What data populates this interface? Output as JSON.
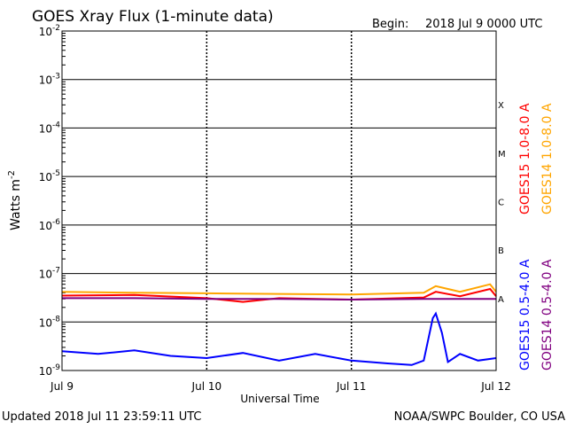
{
  "header": {
    "title": "GOES Xray Flux (1-minute data)",
    "begin_label": "Begin:",
    "begin_value": "2018 Jul 9 0000 UTC"
  },
  "footer": {
    "updated": "Updated 2018 Jul 11 23:59:11 UTC",
    "credit": "NOAA/SWPC Boulder, CO USA"
  },
  "chart_data": {
    "type": "line",
    "title": "GOES Xray Flux (1-minute data)",
    "xlabel": "Universal Time",
    "ylabel": "Watts m",
    "ylabel_superscript": "-2",
    "yscale": "log",
    "ylim": [
      1e-09,
      0.01
    ],
    "y_ticks": [
      {
        "base": "10",
        "exp": "-9"
      },
      {
        "base": "10",
        "exp": "-8"
      },
      {
        "base": "10",
        "exp": "-7"
      },
      {
        "base": "10",
        "exp": "-6"
      },
      {
        "base": "10",
        "exp": "-5"
      },
      {
        "base": "10",
        "exp": "-4"
      },
      {
        "base": "10",
        "exp": "-3"
      },
      {
        "base": "10",
        "exp": "-2"
      }
    ],
    "x_ticks": [
      "Jul 9",
      "Jul 10",
      "Jul 11",
      "Jul 12"
    ],
    "xlim": [
      "2018-07-09 00:00",
      "2018-07-12 00:00"
    ],
    "flare_classes": [
      "A",
      "B",
      "C",
      "M",
      "X"
    ],
    "grid": true,
    "legend_right": {
      "goes15_long": "GOES15 1.0-8.0 A",
      "goes14_long": "GOES14 1.0-8.0 A",
      "goes15_short": "GOES15 0.5-4.0 A",
      "goes14_short": "GOES14 0.5-4.0 A"
    },
    "series": [
      {
        "name": "GOES14 1.0-8.0 A",
        "color": "#ffa500",
        "x": [
          "2018-07-09 00:00",
          "2018-07-09 12:00",
          "2018-07-10 00:00",
          "2018-07-10 12:00",
          "2018-07-11 00:00",
          "2018-07-11 12:00",
          "2018-07-11 14:00",
          "2018-07-11 18:00",
          "2018-07-11 23:00",
          "2018-07-12 00:00"
        ],
        "y": [
          4.2e-08,
          4e-08,
          3.9e-08,
          3.8e-08,
          3.7e-08,
          4e-08,
          5.5e-08,
          4.2e-08,
          6e-08,
          4.2e-08
        ]
      },
      {
        "name": "GOES15 1.0-8.0 A",
        "color": "#ff0000",
        "x": [
          "2018-07-09 00:00",
          "2018-07-09 12:00",
          "2018-07-10 00:00",
          "2018-07-10 06:00",
          "2018-07-10 12:00",
          "2018-07-11 00:00",
          "2018-07-11 12:00",
          "2018-07-11 14:00",
          "2018-07-11 18:00",
          "2018-07-11 23:00",
          "2018-07-12 00:00"
        ],
        "y": [
          3.5e-08,
          3.6e-08,
          3.1e-08,
          2.6e-08,
          3.1e-08,
          2.9e-08,
          3.2e-08,
          4.2e-08,
          3.4e-08,
          4.8e-08,
          3.4e-08
        ]
      },
      {
        "name": "GOES14 0.5-4.0 A",
        "color": "#800080",
        "x": [
          "2018-07-09 00:00",
          "2018-07-09 12:00",
          "2018-07-10 00:00",
          "2018-07-10 12:00",
          "2018-07-11 00:00",
          "2018-07-11 12:00",
          "2018-07-11 18:00",
          "2018-07-12 00:00"
        ],
        "y": [
          3.1e-08,
          3.1e-08,
          3e-08,
          3e-08,
          2.9e-08,
          3e-08,
          3e-08,
          3e-08
        ]
      },
      {
        "name": "GOES15 0.5-4.0 A",
        "color": "#0000ff",
        "x": [
          "2018-07-09 00:00",
          "2018-07-09 06:00",
          "2018-07-09 12:00",
          "2018-07-09 18:00",
          "2018-07-10 00:00",
          "2018-07-10 06:00",
          "2018-07-10 12:00",
          "2018-07-10 18:00",
          "2018-07-11 00:00",
          "2018-07-11 06:00",
          "2018-07-11 10:00",
          "2018-07-11 12:00",
          "2018-07-11 13:30",
          "2018-07-11 14:00",
          "2018-07-11 15:00",
          "2018-07-11 16:00",
          "2018-07-11 18:00",
          "2018-07-11 21:00",
          "2018-07-12 00:00"
        ],
        "y": [
          2.5e-09,
          2.2e-09,
          2.6e-09,
          2e-09,
          1.8e-09,
          2.3e-09,
          1.6e-09,
          2.2e-09,
          1.6e-09,
          1.4e-09,
          1.3e-09,
          1.6e-09,
          1.2e-08,
          1.5e-08,
          6e-09,
          1.5e-09,
          2.2e-09,
          1.6e-09,
          1.8e-09
        ]
      }
    ]
  }
}
